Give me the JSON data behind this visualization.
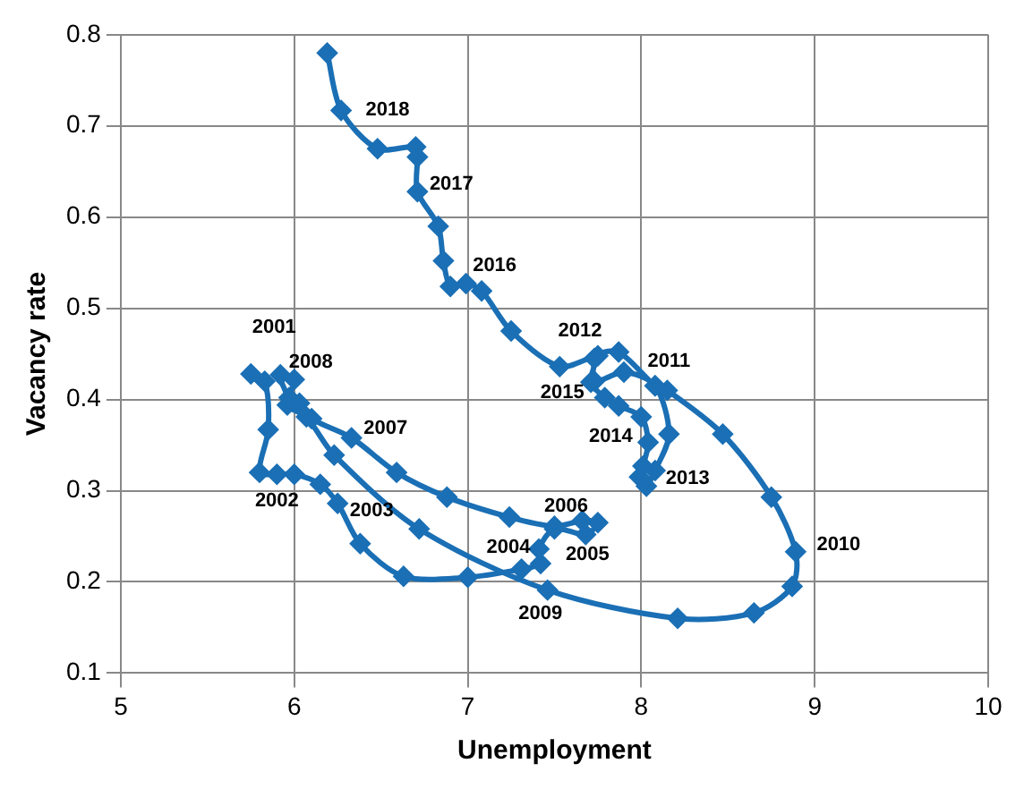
{
  "chart_data": {
    "type": "line",
    "xlabel": "Unemployment",
    "ylabel": "Vacancy rate",
    "xlim": [
      5,
      10
    ],
    "xticks": [
      5,
      6,
      7,
      8,
      9,
      10
    ],
    "ylim": [
      0.1,
      0.8
    ],
    "yticks": [
      0.1,
      0.2,
      0.3,
      0.4,
      0.5,
      0.6,
      0.7,
      0.8
    ],
    "grid": true,
    "legend": false,
    "marker": "diamond",
    "line_style": "solid",
    "series": [
      {
        "color": "#1a6fb5",
        "x": [
          5.75,
          5.83,
          5.85,
          5.8,
          5.9,
          6.0,
          6.15,
          6.25,
          6.38,
          6.63,
          7.0,
          7.31,
          7.42,
          7.41,
          7.5,
          7.68,
          7.75,
          7.66,
          7.5,
          7.24,
          6.88,
          6.59,
          6.33,
          6.1,
          6.03,
          5.97,
          5.92,
          6.0,
          5.96,
          6.07,
          6.23,
          6.72,
          7.46,
          8.21,
          8.65,
          8.87,
          8.89,
          8.75,
          8.47,
          8.15,
          8.08,
          7.87,
          7.75,
          7.73,
          7.9,
          8.08,
          8.16,
          8.08,
          8.03,
          7.99,
          8.01,
          8.04,
          8.0,
          7.87,
          7.79,
          7.71,
          7.73,
          7.53,
          7.25,
          7.08,
          6.99,
          6.9,
          6.86,
          6.83,
          6.71,
          6.71,
          6.7,
          6.48,
          6.27,
          6.19
        ],
        "values": [
          0.428,
          0.42,
          0.367,
          0.32,
          0.318,
          0.318,
          0.307,
          0.286,
          0.242,
          0.206,
          0.205,
          0.214,
          0.22,
          0.236,
          0.258,
          0.252,
          0.265,
          0.267,
          0.261,
          0.271,
          0.293,
          0.32,
          0.358,
          0.379,
          0.396,
          0.402,
          0.427,
          0.422,
          0.394,
          0.381,
          0.339,
          0.258,
          0.191,
          0.16,
          0.166,
          0.195,
          0.233,
          0.293,
          0.362,
          0.41,
          0.415,
          0.452,
          0.448,
          0.42,
          0.43,
          0.415,
          0.362,
          0.322,
          0.305,
          0.315,
          0.327,
          0.353,
          0.381,
          0.393,
          0.402,
          0.419,
          0.445,
          0.436,
          0.475,
          0.519,
          0.527,
          0.524,
          0.552,
          0.59,
          0.628,
          0.666,
          0.677,
          0.675,
          0.717,
          0.78
        ]
      }
    ],
    "annotations": [
      {
        "text": "2001",
        "x": 5.75,
        "y": 0.428
      },
      {
        "text": "2002",
        "x": 5.9,
        "y": 0.318
      },
      {
        "text": "2003",
        "x": 6.25,
        "y": 0.286
      },
      {
        "text": "2004",
        "x": 7.41,
        "y": 0.236
      },
      {
        "text": "2005",
        "x": 7.68,
        "y": 0.252
      },
      {
        "text": "2006",
        "x": 7.66,
        "y": 0.267
      },
      {
        "text": "2007",
        "x": 6.33,
        "y": 0.358
      },
      {
        "text": "2008",
        "x": 5.92,
        "y": 0.427
      },
      {
        "text": "2009",
        "x": 7.46,
        "y": 0.191
      },
      {
        "text": "2010",
        "x": 8.89,
        "y": 0.233
      },
      {
        "text": "2011",
        "x": 8.15,
        "y": 0.41
      },
      {
        "text": "2012",
        "x": 7.75,
        "y": 0.448
      },
      {
        "text": "2013",
        "x": 8.03,
        "y": 0.305
      },
      {
        "text": "2014",
        "x": 8.0,
        "y": 0.381
      },
      {
        "text": "2015",
        "x": 7.71,
        "y": 0.419
      },
      {
        "text": "2016",
        "x": 6.99,
        "y": 0.527
      },
      {
        "text": "2017",
        "x": 6.71,
        "y": 0.628
      },
      {
        "text": "2018",
        "x": 6.27,
        "y": 0.717
      }
    ]
  }
}
